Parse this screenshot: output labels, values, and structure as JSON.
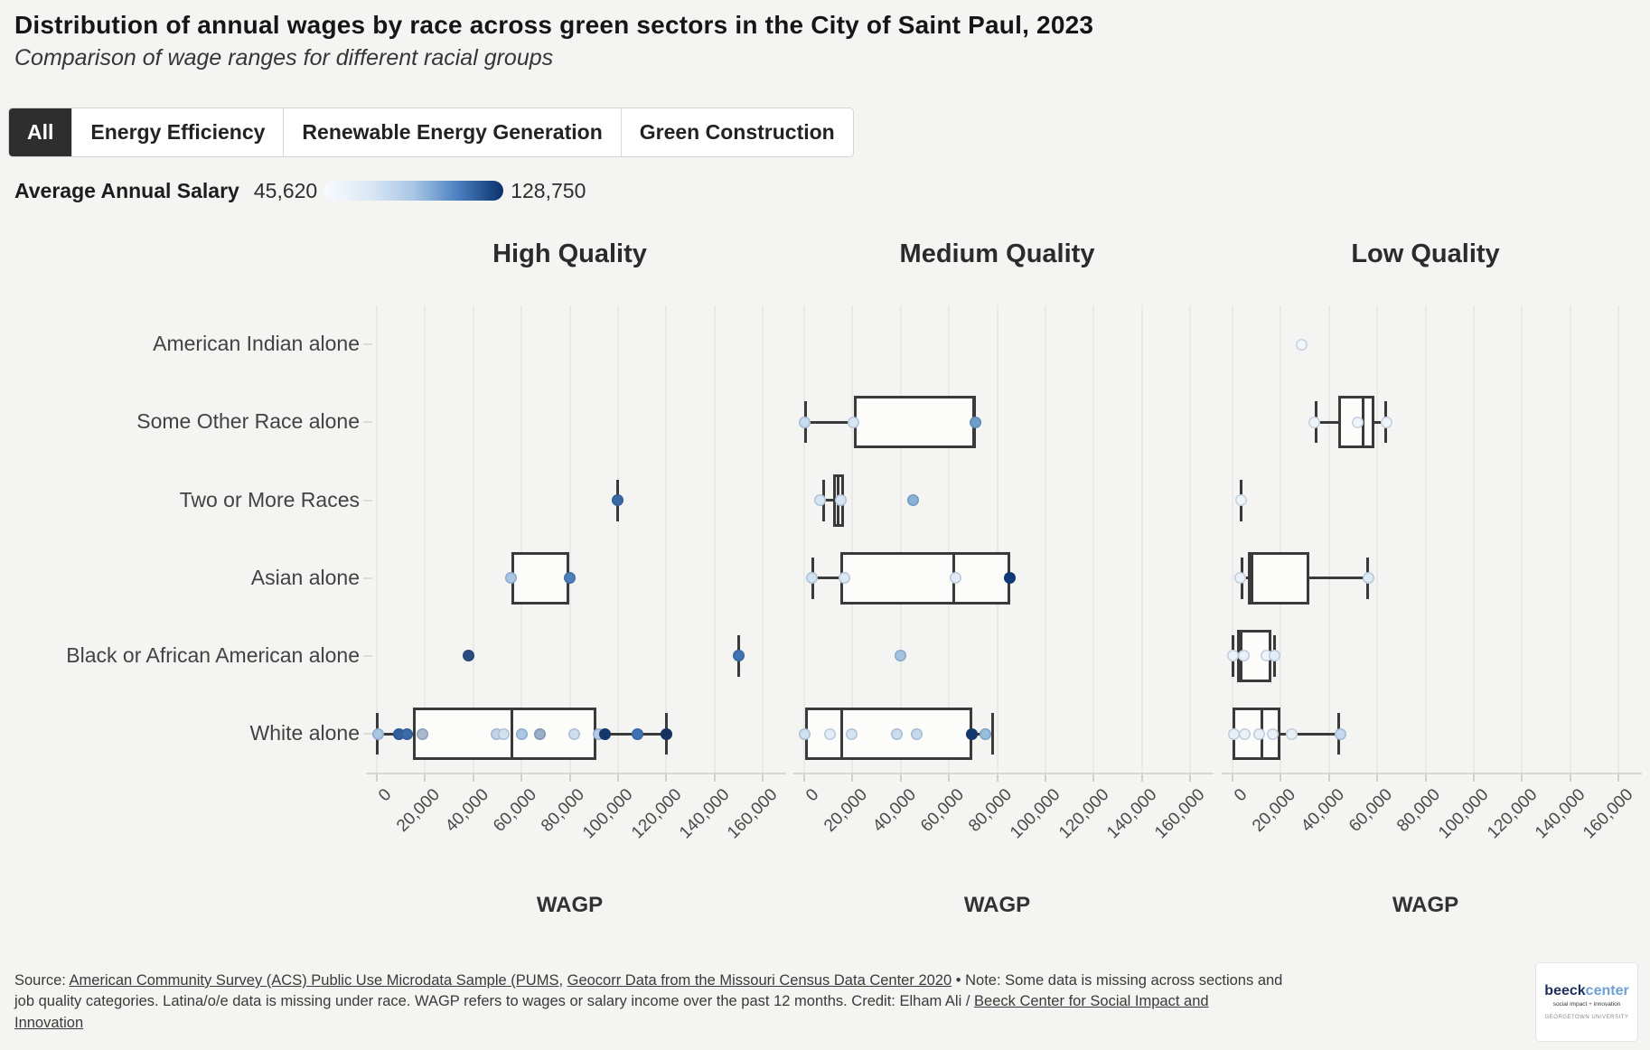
{
  "header": {
    "title": "Distribution of annual wages by race across green sectors in the City of Saint Paul, 2023",
    "subtitle": "Comparison of wage ranges for different racial groups"
  },
  "tabs": [
    {
      "label": "All",
      "active": true
    },
    {
      "label": "Energy Efficiency",
      "active": false
    },
    {
      "label": "Renewable Energy Generation",
      "active": false
    },
    {
      "label": "Green Construction",
      "active": false
    }
  ],
  "legend": {
    "label": "Average Annual Salary",
    "min": "45,620",
    "max": "128,750",
    "gradient": [
      "#f8fbfe",
      "#dce8f5",
      "#a8c6e4",
      "#4a7fc1",
      "#0a306b"
    ]
  },
  "colors": {
    "background": "#f4f4f2",
    "box_stroke": "#3a3a3a",
    "box_fill": "#fcfcfb",
    "gridline": "#e9e9e7",
    "active_tab_bg": "#2e2e2e"
  },
  "chart_data": {
    "type": "boxplot",
    "facets": [
      "High Quality",
      "Medium Quality",
      "Low Quality"
    ],
    "categories": [
      "American Indian alone",
      "Some Other Race alone",
      "Two or More Races",
      "Asian alone",
      "Black or African American alone",
      "White alone"
    ],
    "xlabel": "WAGP",
    "xlim": [
      0,
      160000
    ],
    "x_ticks": [
      0,
      20000,
      40000,
      60000,
      80000,
      100000,
      120000,
      140000,
      160000
    ],
    "x_tick_labels": [
      "0",
      "20,000",
      "40,000",
      "60,000",
      "80,000",
      "100,000",
      "120,000",
      "140,000",
      "160,000"
    ],
    "grid": true,
    "panels": [
      {
        "title": "High Quality",
        "rows": [
          {},
          {},
          {
            "lines": [
              100000
            ],
            "dots": [
              {
                "v": 100000,
                "c": "#3a6aa5"
              }
            ]
          },
          {
            "box": {
              "min": null,
              "q1": 56000,
              "median": null,
              "q3": 80000,
              "max": null
            },
            "dots": [
              {
                "v": 55500,
                "c": "#a9c6e3"
              },
              {
                "v": 80000,
                "c": "#4d7fb8"
              }
            ]
          },
          {
            "lines": [
              150000
            ],
            "dots": [
              {
                "v": 38000,
                "c": "#2b4d7e"
              },
              {
                "v": 150000,
                "c": "#3f74b0"
              }
            ]
          },
          {
            "box": {
              "min": 0,
              "q1": 15000,
              "median": 56000,
              "q3": 91000,
              "max": 120000
            },
            "dots": [
              {
                "v": 500,
                "c": "#aac7e3"
              },
              {
                "v": 9000,
                "c": "#31609f"
              },
              {
                "v": 12500,
                "c": "#3a6aa8"
              },
              {
                "v": 19000,
                "c": "#a9b8cd"
              },
              {
                "v": 49500,
                "c": "#c3d4e8"
              },
              {
                "v": 52500,
                "c": "#d3e0ef"
              },
              {
                "v": 60000,
                "c": "#a9c7e5"
              },
              {
                "v": 67500,
                "c": "#9aaec7"
              },
              {
                "v": 82000,
                "c": "#cfdded"
              },
              {
                "v": 92000,
                "c": "#b3cbe6"
              },
              {
                "v": 94500,
                "c": "#14386b"
              },
              {
                "v": 108000,
                "c": "#3b73b3"
              },
              {
                "v": 120000,
                "c": "#16335f"
              }
            ]
          }
        ]
      },
      {
        "title": "Medium Quality",
        "rows": [
          {},
          {
            "box": {
              "min": 500,
              "q1": 20500,
              "median": 70800,
              "q3": 70800,
              "max": null
            },
            "dots": [
              {
                "v": 0,
                "c": "#c8dcef"
              },
              {
                "v": 20400,
                "c": "#d7e5f3"
              },
              {
                "v": 71000,
                "c": "#6f9fc9"
              }
            ]
          },
          {
            "box": {
              "min": 8000,
              "q1": 12000,
              "median": 14200,
              "q3": 16400,
              "max": null
            },
            "dots": [
              {
                "v": 6700,
                "c": "#d5e4f2"
              },
              {
                "v": 15000,
                "c": "#d5e4f2"
              },
              {
                "v": 45000,
                "c": "#8ab1d6"
              }
            ]
          },
          {
            "box": {
              "min": 3700,
              "q1": 15000,
              "median": 62000,
              "q3": 85300,
              "max": null
            },
            "dots": [
              {
                "v": 3000,
                "c": "#d2e2f1"
              },
              {
                "v": 16800,
                "c": "#dce8f5"
              },
              {
                "v": 62600,
                "c": "#e1ecf7"
              },
              {
                "v": 85300,
                "c": "#0f3a77"
              }
            ]
          },
          {
            "dots": [
              {
                "v": 40000,
                "c": "#a3c4e1"
              }
            ]
          },
          {
            "box": {
              "min": null,
              "q1": 500,
              "median": 15600,
              "q3": 69800,
              "max": 78000
            },
            "dots": [
              {
                "v": 0,
                "c": "#cfe0f0"
              },
              {
                "v": 10500,
                "c": "#e2edf8"
              },
              {
                "v": 19800,
                "c": "#d5e4f2"
              },
              {
                "v": 38400,
                "c": "#cadded"
              },
              {
                "v": 46600,
                "c": "#c6daec"
              },
              {
                "v": 69600,
                "c": "#123a70"
              },
              {
                "v": 75100,
                "c": "#98bedd"
              }
            ]
          }
        ]
      },
      {
        "title": "Low Quality",
        "rows": [
          {
            "dots": [
              {
                "v": 28500,
                "c": "#f0f6fc"
              }
            ]
          },
          {
            "box": {
              "min": 34500,
              "q1": 44000,
              "median": 54000,
              "q3": 59000,
              "max": 63500
            },
            "dots": [
              {
                "v": 34000,
                "c": "#eef4fb"
              },
              {
                "v": 52000,
                "c": "#eef4fb"
              },
              {
                "v": 64000,
                "c": "#eef4fb"
              }
            ]
          },
          {
            "lines": [
              3700
            ],
            "dots": [
              {
                "v": 3500,
                "c": "#eef4fb"
              }
            ]
          },
          {
            "box": {
              "min": 4000,
              "q1": 6500,
              "median": 8200,
              "q3": 32000,
              "max": 56000
            },
            "dots": [
              {
                "v": 3000,
                "c": "#e8f1f9"
              },
              {
                "v": 56500,
                "c": "#dcebf6"
              }
            ]
          },
          {
            "box": {
              "min": 0,
              "q1": 2000,
              "median": 3700,
              "q3": 16000,
              "max": 17500
            },
            "dots": [
              {
                "v": 0,
                "c": "#eaf2fa"
              },
              {
                "v": 4500,
                "c": "#e8f0f9"
              },
              {
                "v": 14000,
                "c": "#eef4fb"
              },
              {
                "v": 17500,
                "c": "#e3edf7"
              }
            ]
          },
          {
            "box": {
              "min": null,
              "q1": 0,
              "median": 12000,
              "q3": 20000,
              "max": 44000
            },
            "dots": [
              {
                "v": 500,
                "c": "#e8f0f8"
              },
              {
                "v": 5200,
                "c": "#eaf2fa"
              },
              {
                "v": 10900,
                "c": "#e8f0f8"
              },
              {
                "v": 16500,
                "c": "#e8f0f8"
              },
              {
                "v": 24700,
                "c": "#e8f0f8"
              },
              {
                "v": 44600,
                "c": "#c5daee"
              }
            ]
          }
        ]
      }
    ]
  },
  "footer": {
    "lines": [
      [
        {
          "t": "Source: "
        },
        {
          "t": "American Community Survey (ACS) Public Use Microdata Sample (PUMS",
          "u": 1
        },
        {
          "t": ", "
        },
        {
          "t": "Geocorr Data from the Missouri Census Data Center 2020",
          "u": 1
        },
        {
          "t": " • Note: Some data is missing across sections and"
        }
      ],
      [
        {
          "t": "job quality categories. Latina/o/e data is missing under race. WAGP refers to wages or salary income over the past 12 months. Credit: Elham Ali / "
        },
        {
          "t": "Beeck Center for Social Impact and",
          "u": 1
        }
      ],
      [
        {
          "t": "Innovation",
          "u": 1
        }
      ]
    ]
  },
  "logo": {
    "line1_bold": "beeck",
    "line1_light": "center",
    "line2_a": "social impact ",
    "line2_plus": "+",
    "line2_b": " innovation",
    "line3": "GEORGETOWN UNIVERSITY"
  }
}
